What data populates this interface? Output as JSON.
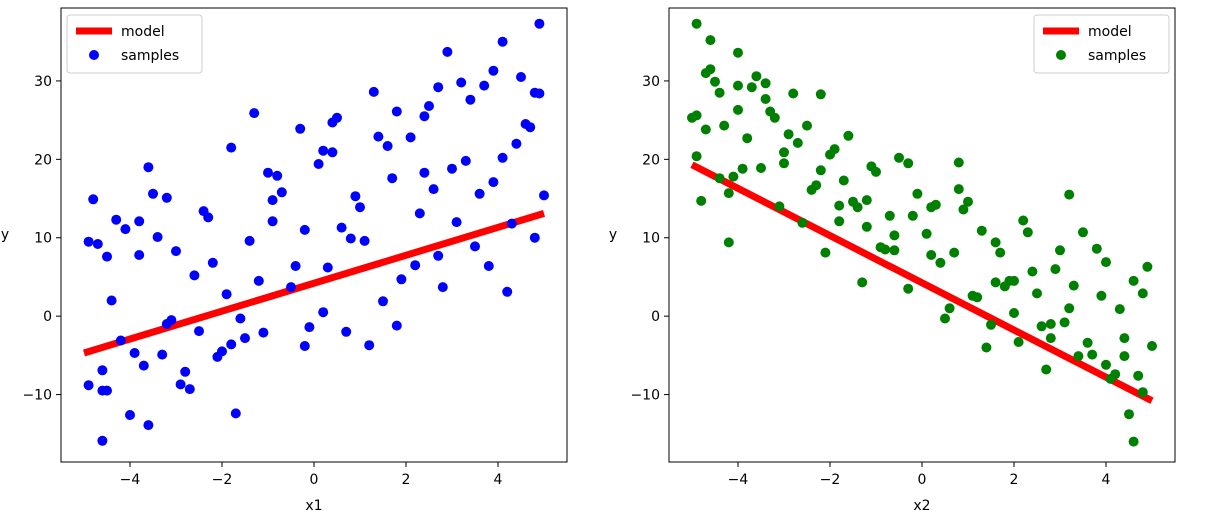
{
  "chart_data": [
    {
      "type": "scatter",
      "xlabel": "x1",
      "ylabel": "y",
      "xlim": [
        -5.5,
        5.5
      ],
      "ylim": [
        -18.6,
        39.3
      ],
      "xticks": [
        -4,
        -2,
        0,
        2,
        4
      ],
      "yticks": [
        -10,
        0,
        10,
        20,
        30
      ],
      "tick_labels_x": [
        "−4",
        "−2",
        "0",
        "2",
        "4"
      ],
      "tick_labels_y": [
        "−10",
        "0",
        "10",
        "20",
        "30"
      ],
      "legend": {
        "placement": "upper left",
        "entries": [
          "model",
          "samples"
        ]
      },
      "series": [
        {
          "name": "model",
          "kind": "line",
          "color": "#ff0000",
          "x": [
            -5,
            5
          ],
          "y": [
            -4.7,
            13.1
          ]
        },
        {
          "name": "samples",
          "kind": "scatter",
          "color": "#0000ff",
          "x": [
            -4.9,
            -4.8,
            -4.6,
            -4.5,
            -4.4,
            -4.2,
            -4.1,
            -3.9,
            -3.8,
            -3.6,
            -3.5,
            -3.3,
            -3.1,
            -3.0,
            -2.8,
            -2.6,
            -2.5,
            -2.3,
            -2.1,
            -1.9,
            -1.8,
            -1.6,
            -1.4,
            -1.3,
            -1.1,
            -0.9,
            -0.7,
            -0.5,
            -0.3,
            -0.1,
            0.1,
            0.3,
            0.5,
            0.7,
            0.9,
            1.1,
            1.3,
            1.5,
            1.7,
            1.9,
            2.1,
            2.3,
            2.5,
            2.7,
            2.9,
            3.1,
            3.3,
            3.5,
            3.7,
            3.9,
            4.1,
            4.3,
            4.5,
            4.7,
            4.9,
            -4.7,
            -4.3,
            -3.7,
            -3.2,
            -2.7,
            -2.2,
            -1.7,
            -1.2,
            -0.8,
            -0.2,
            0.4,
            0.8,
            1.4,
            1.8,
            2.4,
            2.8,
            3.4,
            3.8,
            4.4,
            4.8,
            -4.5,
            -4.0,
            -3.4,
            -2.9,
            -2.4,
            -1.5,
            -1.0,
            -0.4,
            0.2,
            0.6,
            1.2,
            1.6,
            2.2,
            2.6,
            3.2,
            3.6,
            4.2,
            4.6,
            5.0,
            -4.6,
            -4.6,
            -3.6,
            -1.8,
            -0.2,
            0.2,
            1.0,
            2.4,
            3.0,
            4.1,
            4.8,
            -4.9,
            -3.8,
            -3.2,
            -2.0,
            -0.9,
            0.4,
            1.8,
            2.7,
            3.9,
            4.9
          ],
          "y": [
            -8.8,
            14.9,
            -6.9,
            7.6,
            2.0,
            -3.1,
            11.1,
            -4.7,
            7.8,
            -13.9,
            15.6,
            -4.9,
            -0.5,
            8.3,
            -7.1,
            5.2,
            -1.9,
            12.6,
            -5.2,
            2.8,
            21.5,
            -0.3,
            9.6,
            25.9,
            -2.1,
            12.1,
            15.8,
            3.7,
            23.9,
            -1.4,
            19.4,
            6.2,
            25.3,
            -2.0,
            15.3,
            9.6,
            28.6,
            1.9,
            17.6,
            4.7,
            22.8,
            13.1,
            26.8,
            7.7,
            33.7,
            12.0,
            19.8,
            8.9,
            29.4,
            17.1,
            35.0,
            11.8,
            30.5,
            24.1,
            28.4,
            9.2,
            12.3,
            -6.3,
            15.1,
            -9.3,
            6.8,
            -12.4,
            4.5,
            17.9,
            -3.8,
            20.9,
            9.9,
            22.9,
            -1.2,
            18.3,
            3.7,
            27.6,
            6.4,
            22.0,
            10.0,
            -9.5,
            -12.6,
            10.1,
            -8.7,
            13.4,
            -2.8,
            18.3,
            6.4,
            0.5,
            11.3,
            -3.7,
            21.7,
            6.5,
            16.2,
            29.8,
            15.6,
            3.1,
            24.5,
            15.4,
            -9.5,
            -15.9,
            19.0,
            -3.6,
            11.0,
            21.1,
            13.9,
            25.5,
            18.8,
            20.2,
            28.5,
            9.5,
            12.1,
            -1.0,
            -4.5,
            14.8,
            24.7,
            26.1,
            29.2,
            31.3,
            37.3
          ]
        }
      ]
    },
    {
      "type": "scatter",
      "xlabel": "x2",
      "ylabel": "y",
      "xlim": [
        -5.5,
        5.5
      ],
      "ylim": [
        -18.6,
        39.3
      ],
      "xticks": [
        -4,
        -2,
        0,
        2,
        4
      ],
      "yticks": [
        -10,
        0,
        10,
        20,
        30
      ],
      "tick_labels_x": [
        "−4",
        "−2",
        "0",
        "2",
        "4"
      ],
      "tick_labels_y": [
        "−10",
        "0",
        "10",
        "20",
        "30"
      ],
      "legend": {
        "placement": "upper right",
        "entries": [
          "model",
          "samples"
        ]
      },
      "series": [
        {
          "name": "model",
          "kind": "line",
          "color": "#ff0000",
          "x": [
            -5,
            5
          ],
          "y": [
            19.3,
            -10.8
          ]
        },
        {
          "name": "samples",
          "kind": "scatter",
          "color": "#008000",
          "x": [
            -5.0,
            -4.9,
            -4.7,
            -4.6,
            -4.4,
            -4.3,
            -4.1,
            -4.0,
            -3.8,
            -3.6,
            -3.5,
            -3.3,
            -3.1,
            -3.0,
            -2.8,
            -2.6,
            -2.5,
            -2.3,
            -2.1,
            -1.9,
            -1.8,
            -1.6,
            -1.4,
            -1.3,
            -1.1,
            -0.9,
            -0.7,
            -0.5,
            -0.3,
            -0.1,
            0.1,
            0.3,
            0.5,
            0.7,
            0.9,
            1.1,
            1.3,
            1.5,
            1.7,
            1.9,
            2.1,
            2.3,
            2.5,
            2.7,
            2.9,
            3.1,
            3.3,
            3.5,
            3.7,
            3.9,
            4.1,
            4.3,
            4.5,
            4.7,
            4.9,
            -4.8,
            -4.5,
            -4.2,
            -3.9,
            -3.4,
            -2.9,
            -2.4,
            -2.0,
            -1.5,
            -1.0,
            -0.6,
            -0.2,
            0.4,
            0.8,
            1.2,
            1.6,
            2.0,
            2.4,
            2.8,
            3.2,
            3.6,
            4.0,
            4.4,
            4.8,
            -4.9,
            -4.6,
            -4.0,
            -3.7,
            -3.2,
            -2.7,
            -2.2,
            -1.7,
            -1.2,
            -0.8,
            -0.3,
            0.2,
            0.6,
            1.0,
            1.4,
            1.8,
            2.2,
            2.6,
            3.0,
            3.4,
            3.8,
            4.2,
            4.6,
            5.0,
            -4.9,
            -4.7,
            -4.2,
            -3.4,
            -2.2,
            -1.2,
            0.2,
            1.6,
            2.8,
            4.0,
            4.6,
            4.8,
            -4.4,
            -4.0,
            -3.0,
            -1.8,
            -0.6,
            0.8,
            2.0,
            3.2,
            4.4
          ],
          "y": [
            25.3,
            20.4,
            31.0,
            35.2,
            28.5,
            24.3,
            17.8,
            29.4,
            22.7,
            30.6,
            18.9,
            26.1,
            14.0,
            20.9,
            28.4,
            11.9,
            24.3,
            16.7,
            8.1,
            21.3,
            12.1,
            23.0,
            13.9,
            4.3,
            19.1,
            8.8,
            12.8,
            20.2,
            3.5,
            15.6,
            10.5,
            14.2,
            -0.3,
            8.1,
            13.6,
            2.6,
            10.9,
            -1.1,
            8.1,
            4.5,
            -3.3,
            10.7,
            2.9,
            -6.8,
            6.0,
            -0.8,
            3.9,
            10.7,
            -4.9,
            2.6,
            -8.0,
            0.9,
            -12.5,
            -7.6,
            6.3,
            14.7,
            29.9,
            9.4,
            18.8,
            27.7,
            23.2,
            16.1,
            20.6,
            14.6,
            18.4,
            10.3,
            12.8,
            6.8,
            19.6,
            2.4,
            9.4,
            0.4,
            5.7,
            -2.8,
            15.5,
            -3.4,
            6.9,
            -2.8,
            2.9,
            37.3,
            31.5,
            33.6,
            29.2,
            25.3,
            22.1,
            18.6,
            17.3,
            14.8,
            8.5,
            19.5,
            13.9,
            1.0,
            14.6,
            -4.0,
            3.8,
            12.2,
            -1.3,
            8.4,
            -5.1,
            8.6,
            -7.4,
            4.5,
            -3.8,
            25.6,
            23.8,
            15.7,
            29.7,
            28.3,
            11.4,
            7.8,
            4.3,
            -1.0,
            -6.2,
            -16.0,
            -9.7,
            17.6,
            26.3,
            19.5,
            14.1,
            8.4,
            16.2,
            4.5,
            1.0,
            -5.1
          ]
        }
      ]
    }
  ]
}
